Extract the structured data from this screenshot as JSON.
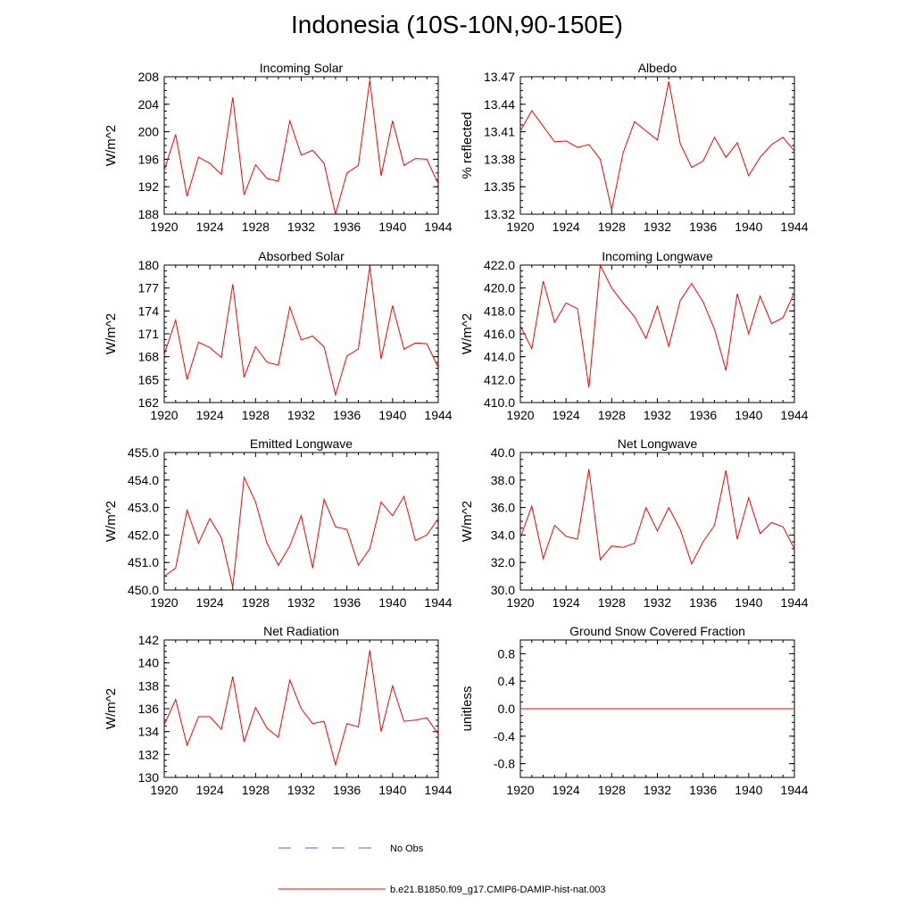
{
  "title": "Indonesia (10S-10N,90-150E)",
  "legend": {
    "entries": [
      {
        "label": "No Obs",
        "color": "#5a5aff",
        "style": "dashed"
      },
      {
        "label": "b.e21.B1850.f09_g17.CMIP6-DAMIP-hist-nat.003",
        "color": "#ff0000",
        "style": "solid"
      }
    ]
  },
  "chart_data": [
    {
      "type": "line",
      "title": "Incoming Solar",
      "ylabel": "W/m^2",
      "xlim": [
        1920,
        1944
      ],
      "xticks": [
        "1920",
        "1924",
        "1928",
        "1932",
        "1936",
        "1940",
        "1944"
      ],
      "ylim": [
        188,
        208
      ],
      "yticks": [
        "188",
        "192",
        "196",
        "200",
        "204",
        "208"
      ],
      "series": [
        {
          "color": "#ff0000",
          "x": [
            1920,
            1921,
            1922,
            1923,
            1924,
            1925,
            1926,
            1927,
            1928,
            1929,
            1930,
            1931,
            1932,
            1933,
            1934,
            1935,
            1936,
            1937,
            1938,
            1939,
            1940,
            1941,
            1942,
            1943,
            1944
          ],
          "values": [
            194.4,
            199.6,
            190.6,
            196.3,
            195.4,
            193.8,
            205.0,
            190.8,
            195.2,
            193.2,
            192.8,
            201.6,
            196.6,
            197.3,
            195.4,
            188.0,
            194.0,
            195.1,
            207.5,
            193.6,
            201.6,
            195.1,
            196.1,
            196.0,
            192.4
          ]
        }
      ]
    },
    {
      "type": "line",
      "title": "Albedo",
      "ylabel": "% reflected",
      "xlim": [
        1920,
        1944
      ],
      "xticks": [
        "1920",
        "1924",
        "1928",
        "1932",
        "1936",
        "1940",
        "1944"
      ],
      "ylim": [
        13.32,
        13.47
      ],
      "yticks": [
        "13.32",
        "13.35",
        "13.38",
        "13.41",
        "13.44",
        "13.47"
      ],
      "series": [
        {
          "color": "#ff0000",
          "x": [
            1920,
            1921,
            1922,
            1923,
            1924,
            1925,
            1926,
            1927,
            1928,
            1929,
            1930,
            1931,
            1932,
            1933,
            1934,
            1935,
            1936,
            1937,
            1938,
            1939,
            1940,
            1941,
            1942,
            1943,
            1944
          ],
          "values": [
            13.411,
            13.433,
            13.416,
            13.399,
            13.4,
            13.393,
            13.396,
            13.38,
            13.325,
            13.387,
            13.421,
            13.411,
            13.401,
            13.465,
            13.397,
            13.371,
            13.378,
            13.404,
            13.382,
            13.398,
            13.362,
            13.382,
            13.396,
            13.404,
            13.389
          ]
        }
      ]
    },
    {
      "type": "line",
      "title": "Absorbed Solar",
      "ylabel": "W/m^2",
      "xlim": [
        1920,
        1944
      ],
      "xticks": [
        "1920",
        "1924",
        "1928",
        "1932",
        "1936",
        "1940",
        "1944"
      ],
      "ylim": [
        162,
        180
      ],
      "yticks": [
        "162",
        "165",
        "168",
        "171",
        "174",
        "177",
        "180"
      ],
      "series": [
        {
          "color": "#ff0000",
          "x": [
            1920,
            1921,
            1922,
            1923,
            1924,
            1925,
            1926,
            1927,
            1928,
            1929,
            1930,
            1931,
            1932,
            1933,
            1934,
            1935,
            1936,
            1937,
            1938,
            1939,
            1940,
            1941,
            1942,
            1943,
            1944
          ],
          "values": [
            168.3,
            172.8,
            165.0,
            169.9,
            169.2,
            167.9,
            177.5,
            165.3,
            169.3,
            167.3,
            166.9,
            174.5,
            170.2,
            170.7,
            169.3,
            163.0,
            168.1,
            169.0,
            179.8,
            167.7,
            174.7,
            169.0,
            169.8,
            169.7,
            166.6
          ]
        }
      ]
    },
    {
      "type": "line",
      "title": "Incoming Longwave",
      "ylabel": "W/m^2",
      "xlim": [
        1920,
        1944
      ],
      "xticks": [
        "1920",
        "1924",
        "1928",
        "1932",
        "1936",
        "1940",
        "1944"
      ],
      "ylim": [
        410,
        422
      ],
      "yticks": [
        "410.0",
        "412.0",
        "414.0",
        "416.0",
        "418.0",
        "420.0",
        "422.0"
      ],
      "series": [
        {
          "color": "#ff0000",
          "x": [
            1920,
            1921,
            1922,
            1923,
            1924,
            1925,
            1926,
            1927,
            1928,
            1929,
            1930,
            1931,
            1932,
            1933,
            1934,
            1935,
            1936,
            1937,
            1938,
            1939,
            1940,
            1941,
            1942,
            1943,
            1944
          ],
          "values": [
            416.7,
            414.7,
            420.6,
            417.0,
            418.7,
            418.2,
            411.3,
            422.0,
            420.0,
            418.7,
            417.5,
            415.6,
            418.4,
            414.9,
            418.9,
            420.4,
            418.8,
            416.4,
            412.8,
            419.5,
            416.0,
            419.3,
            416.9,
            417.4,
            419.6
          ]
        }
      ]
    },
    {
      "type": "line",
      "title": "Emitted Longwave",
      "ylabel": "W/m^2",
      "xlim": [
        1920,
        1944
      ],
      "xticks": [
        "1920",
        "1924",
        "1928",
        "1932",
        "1936",
        "1940",
        "1944"
      ],
      "ylim": [
        450,
        455
      ],
      "yticks": [
        "450.0",
        "451.0",
        "452.0",
        "453.0",
        "454.0",
        "455.0"
      ],
      "series": [
        {
          "color": "#ff0000",
          "x": [
            1920,
            1921,
            1922,
            1923,
            1924,
            1925,
            1926,
            1927,
            1928,
            1929,
            1930,
            1931,
            1932,
            1933,
            1934,
            1935,
            1936,
            1937,
            1938,
            1939,
            1940,
            1941,
            1942,
            1943,
            1944
          ],
          "values": [
            450.5,
            450.8,
            452.9,
            451.7,
            452.6,
            451.9,
            450.1,
            454.1,
            453.2,
            451.7,
            450.9,
            451.6,
            452.7,
            450.8,
            453.3,
            452.3,
            452.2,
            450.9,
            451.5,
            453.2,
            452.7,
            453.4,
            451.8,
            452.0,
            452.6
          ]
        }
      ]
    },
    {
      "type": "line",
      "title": "Net Longwave",
      "ylabel": "W/m^2",
      "xlim": [
        1920,
        1944
      ],
      "xticks": [
        "1920",
        "1924",
        "1928",
        "1932",
        "1936",
        "1940",
        "1944"
      ],
      "ylim": [
        30,
        40
      ],
      "yticks": [
        "30.0",
        "32.0",
        "34.0",
        "36.0",
        "38.0",
        "40.0"
      ],
      "series": [
        {
          "color": "#ff0000",
          "x": [
            1920,
            1921,
            1922,
            1923,
            1924,
            1925,
            1926,
            1927,
            1928,
            1929,
            1930,
            1931,
            1932,
            1933,
            1934,
            1935,
            1936,
            1937,
            1938,
            1939,
            1940,
            1941,
            1942,
            1943,
            1944
          ],
          "values": [
            33.8,
            36.1,
            32.3,
            34.7,
            33.9,
            33.7,
            38.8,
            32.2,
            33.2,
            33.1,
            33.4,
            36.0,
            34.3,
            36.0,
            34.4,
            31.9,
            33.5,
            34.7,
            38.7,
            33.7,
            36.7,
            34.1,
            34.9,
            34.6,
            33.0
          ]
        }
      ]
    },
    {
      "type": "line",
      "title": "Net Radiation",
      "ylabel": "W/m^2",
      "xlim": [
        1920,
        1944
      ],
      "xticks": [
        "1920",
        "1924",
        "1928",
        "1932",
        "1936",
        "1940",
        "1944"
      ],
      "ylim": [
        130,
        142
      ],
      "yticks": [
        "130",
        "132",
        "134",
        "136",
        "138",
        "140",
        "142"
      ],
      "series": [
        {
          "color": "#ff0000",
          "x": [
            1920,
            1921,
            1922,
            1923,
            1924,
            1925,
            1926,
            1927,
            1928,
            1929,
            1930,
            1931,
            1932,
            1933,
            1934,
            1935,
            1936,
            1937,
            1938,
            1939,
            1940,
            1941,
            1942,
            1943,
            1944
          ],
          "values": [
            134.6,
            136.8,
            132.8,
            135.3,
            135.3,
            134.2,
            138.8,
            133.1,
            136.1,
            134.3,
            133.5,
            138.5,
            136.0,
            134.7,
            134.9,
            131.1,
            134.7,
            134.4,
            141.1,
            134.0,
            138.0,
            134.9,
            135.0,
            135.2,
            133.8
          ]
        }
      ]
    },
    {
      "type": "line",
      "title": "Ground Snow Covered Fraction",
      "ylabel": "unitless",
      "xlim": [
        1920,
        1944
      ],
      "xticks": [
        "1920",
        "1924",
        "1928",
        "1932",
        "1936",
        "1940",
        "1944"
      ],
      "ylim": [
        -1.0,
        1.0
      ],
      "yticks": [
        "-0.8",
        "-0.4",
        "0.0",
        "0.4",
        "0.8"
      ],
      "series": [
        {
          "color": "#ff0000",
          "x": [
            1920,
            1944
          ],
          "values": [
            0.0,
            0.0
          ]
        }
      ]
    }
  ]
}
